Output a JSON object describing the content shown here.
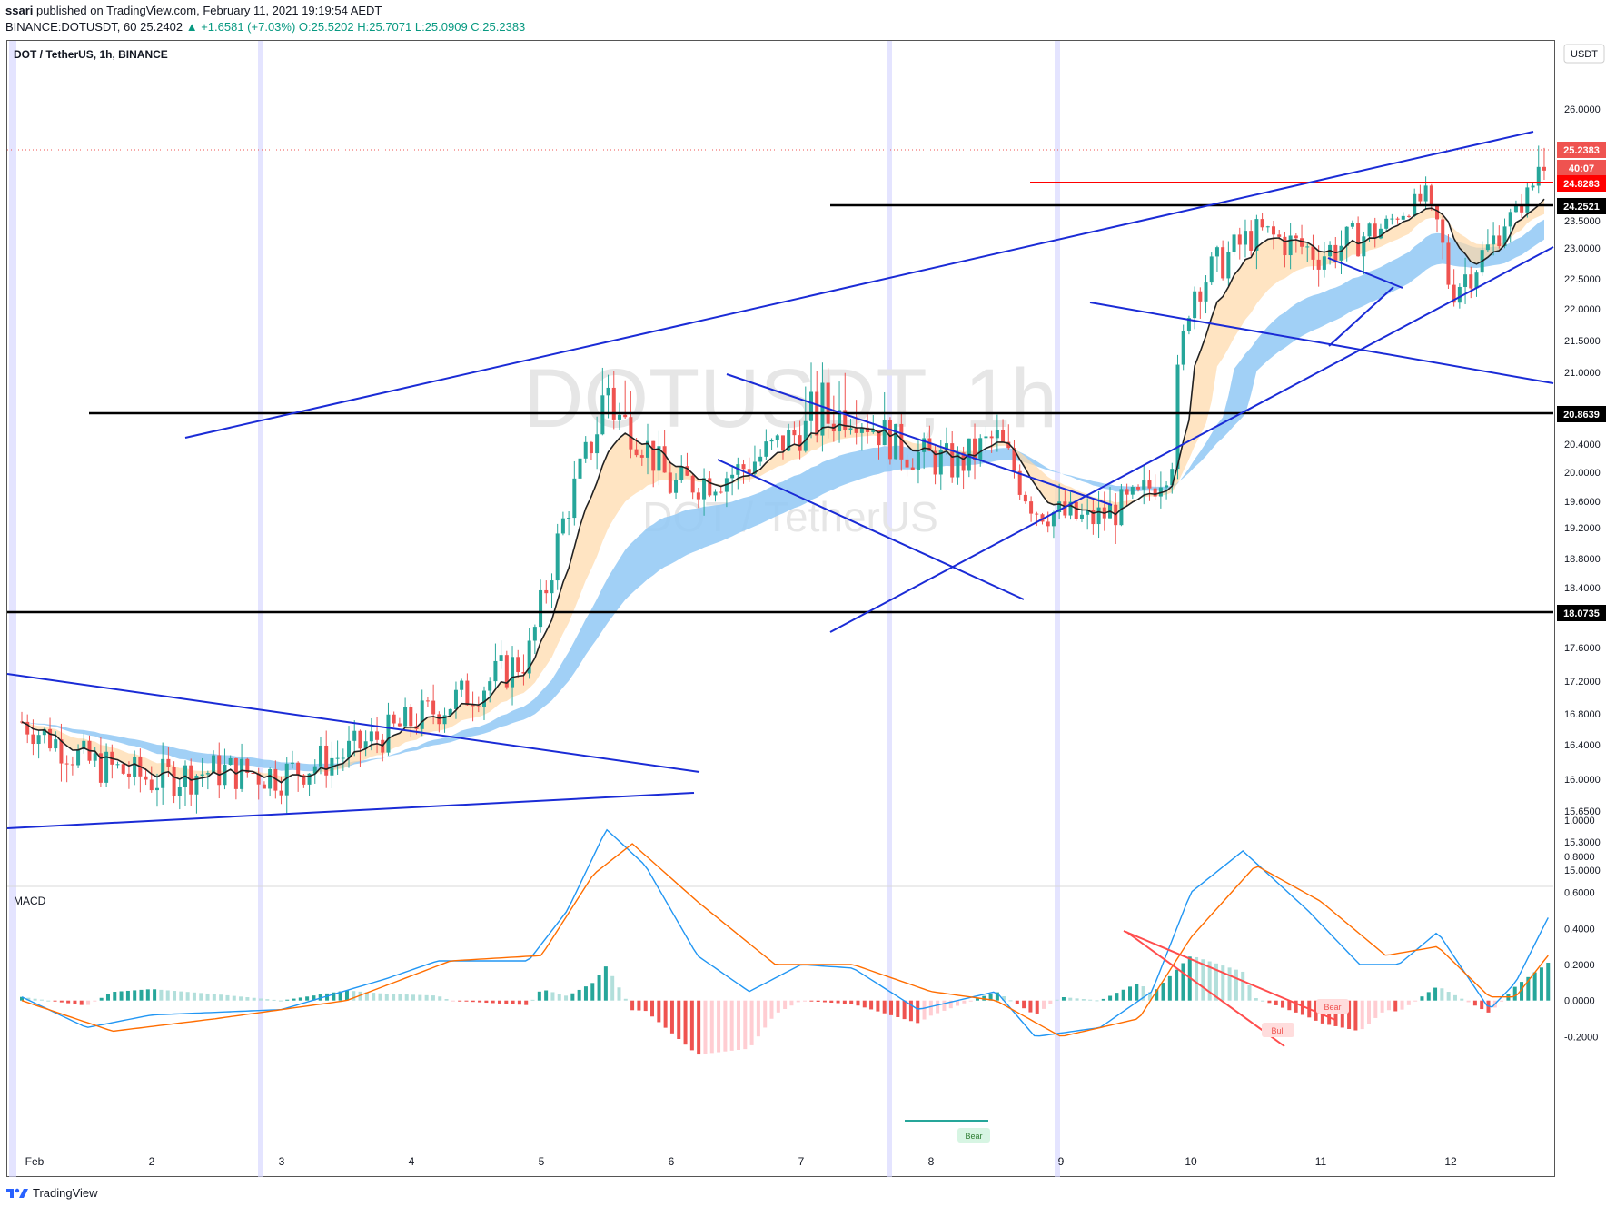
{
  "header": {
    "user": "ssari",
    "published": "published on TradingView.com, February 11, 2021 19:19:54 AEDT",
    "symbol_line_prefix": "BINANCE:DOTUSDT, 60",
    "last": "25.2402",
    "change": "▲ +1.6581 (+7.03%)",
    "ohlc": "O:25.5202 H:25.7071 L:25.0909 C:25.2383"
  },
  "chart_title": "DOT / TetherUS, 1h, BINANCE",
  "currency_label": "USDT",
  "watermark_symbol": "DOTUSDT, 1h",
  "watermark_name": "DOT / TetherUS",
  "macd_label": "MACD",
  "footer": {
    "brand": "TradingView"
  },
  "colors": {
    "up": "#26a69a",
    "down": "#ef5350",
    "trend": "#1a2bd6",
    "level": "#000000",
    "red_level": "#ff0000",
    "macd": "#2196f3",
    "signal": "#ff6d00",
    "hist_up_strong": "#26a69a",
    "hist_up_weak": "#b2dfdb",
    "hist_down_strong": "#ef5350",
    "hist_down_weak": "#ffcdd2",
    "ema_band": "#90c8f5",
    "ema_warm_band": "#ffd9a8"
  },
  "chart_data": [
    {
      "type": "candlestick",
      "title": "DOT / TetherUS, 1h, BINANCE",
      "x_ticks": [
        "Feb",
        "2",
        "3",
        "4",
        "5",
        "6",
        "7",
        "8",
        "9",
        "10",
        "11",
        "12"
      ],
      "y_ticks": [
        "26.0000",
        "23.5000",
        "23.0000",
        "22.5000",
        "22.0000",
        "21.5000",
        "21.0000",
        "20.4000",
        "20.0000",
        "19.6000",
        "19.2000",
        "18.8000",
        "18.4000",
        "17.6000",
        "17.2000",
        "16.8000",
        "16.4000",
        "16.0000",
        "15.6500",
        "15.3000",
        "15.0000"
      ],
      "price_labels": [
        {
          "value": "25.2383",
          "kind": "last"
        },
        {
          "value": "40:07",
          "kind": "countdown"
        },
        {
          "value": "24.8283",
          "kind": "red-level"
        },
        {
          "value": "24.2521",
          "kind": "level"
        },
        {
          "value": "20.8639",
          "kind": "level"
        },
        {
          "value": "18.0735",
          "kind": "level"
        }
      ],
      "horizontal_levels": [
        24.8283,
        24.2521,
        20.8639,
        18.0735
      ],
      "price_path_approx": [
        {
          "t": 0.0,
          "p": 16.7
        },
        {
          "t": 0.5,
          "p": 16.2
        },
        {
          "t": 1.0,
          "p": 16.0
        },
        {
          "t": 1.5,
          "p": 16.1
        },
        {
          "t": 2.0,
          "p": 16.05
        },
        {
          "t": 2.5,
          "p": 16.3
        },
        {
          "t": 3.0,
          "p": 16.7
        },
        {
          "t": 3.5,
          "p": 17.1
        },
        {
          "t": 3.9,
          "p": 17.5
        },
        {
          "t": 4.2,
          "p": 19.5
        },
        {
          "t": 4.5,
          "p": 21.0
        },
        {
          "t": 4.8,
          "p": 20.4
        },
        {
          "t": 5.0,
          "p": 19.8
        },
        {
          "t": 5.5,
          "p": 20.0
        },
        {
          "t": 6.0,
          "p": 20.6
        },
        {
          "t": 6.4,
          "p": 20.9
        },
        {
          "t": 6.8,
          "p": 20.3
        },
        {
          "t": 7.2,
          "p": 20.1
        },
        {
          "t": 7.5,
          "p": 20.5
        },
        {
          "t": 7.8,
          "p": 19.5
        },
        {
          "t": 8.2,
          "p": 19.3
        },
        {
          "t": 8.6,
          "p": 19.6
        },
        {
          "t": 8.85,
          "p": 20.2
        },
        {
          "t": 9.0,
          "p": 22.3
        },
        {
          "t": 9.5,
          "p": 23.3
        },
        {
          "t": 10.0,
          "p": 22.9
        },
        {
          "t": 10.5,
          "p": 23.4
        },
        {
          "t": 10.8,
          "p": 24.5
        },
        {
          "t": 11.0,
          "p": 22.3
        },
        {
          "t": 11.3,
          "p": 23.0
        },
        {
          "t": 11.55,
          "p": 24.2
        },
        {
          "t": 11.7,
          "p": 25.24
        }
      ],
      "annotations": [
        "Bull",
        "Bear",
        "Bear"
      ]
    },
    {
      "type": "line",
      "title": "MACD",
      "y_ticks": [
        "1.0000",
        "0.8000",
        "0.6000",
        "0.4000",
        "0.2000",
        "0.0000",
        "-0.2000"
      ],
      "series": [
        {
          "name": "",
          "role": "macd",
          "points_approx": [
            [
              0,
              0.02
            ],
            [
              0.5,
              -0.15
            ],
            [
              1.0,
              -0.08
            ],
            [
              2.0,
              -0.05
            ],
            [
              2.8,
              0.12
            ],
            [
              3.2,
              0.22
            ],
            [
              3.9,
              0.22
            ],
            [
              4.2,
              0.5
            ],
            [
              4.5,
              0.95
            ],
            [
              4.8,
              0.75
            ],
            [
              5.2,
              0.25
            ],
            [
              5.6,
              0.05
            ],
            [
              6.0,
              0.2
            ],
            [
              6.4,
              0.18
            ],
            [
              6.9,
              -0.05
            ],
            [
              7.5,
              0.05
            ],
            [
              7.8,
              -0.2
            ],
            [
              8.3,
              -0.15
            ],
            [
              8.7,
              0.05
            ],
            [
              9.0,
              0.6
            ],
            [
              9.4,
              0.83
            ],
            [
              9.9,
              0.5
            ],
            [
              10.3,
              0.2
            ],
            [
              10.6,
              0.2
            ],
            [
              10.9,
              0.38
            ],
            [
              11.3,
              -0.05
            ],
            [
              11.5,
              0.1
            ],
            [
              11.75,
              0.46
            ]
          ]
        },
        {
          "name": "",
          "role": "signal",
          "points_approx": [
            [
              0,
              0.0
            ],
            [
              0.7,
              -0.17
            ],
            [
              1.5,
              -0.1
            ],
            [
              2.5,
              0.0
            ],
            [
              3.3,
              0.22
            ],
            [
              4.0,
              0.25
            ],
            [
              4.4,
              0.7
            ],
            [
              4.7,
              0.87
            ],
            [
              5.2,
              0.55
            ],
            [
              5.8,
              0.2
            ],
            [
              6.4,
              0.2
            ],
            [
              7.0,
              0.05
            ],
            [
              7.5,
              0.0
            ],
            [
              8.0,
              -0.2
            ],
            [
              8.6,
              -0.1
            ],
            [
              9.0,
              0.35
            ],
            [
              9.5,
              0.75
            ],
            [
              10.0,
              0.55
            ],
            [
              10.5,
              0.25
            ],
            [
              10.9,
              0.3
            ],
            [
              11.3,
              0.02
            ],
            [
              11.5,
              0.02
            ],
            [
              11.75,
              0.25
            ]
          ]
        }
      ]
    }
  ]
}
